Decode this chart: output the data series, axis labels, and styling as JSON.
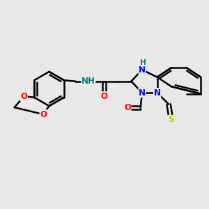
{
  "bg_color": "#e8e8e8",
  "bond_color": "#000000",
  "bond_width": 1.8,
  "atom_colors": {
    "N": "#0000FF",
    "O": "#FF0000",
    "S": "#CCCC00",
    "NH": "#008080",
    "C": "#000000"
  },
  "font_size": 8.5,
  "small_font_size": 7.5
}
